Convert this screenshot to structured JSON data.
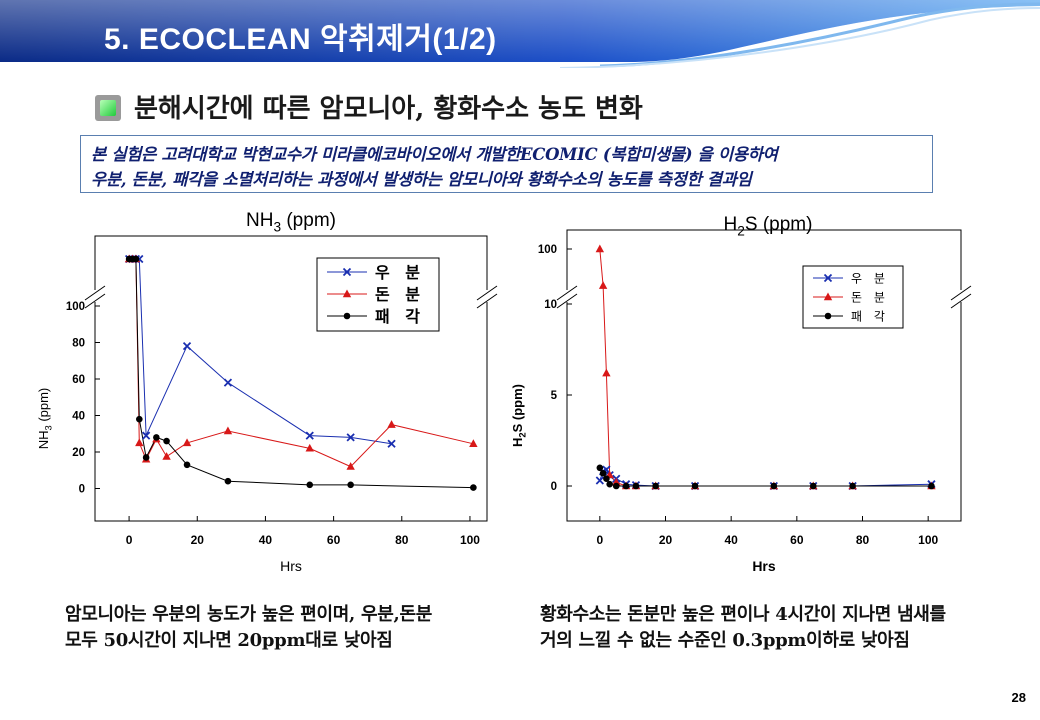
{
  "header": {
    "title": "5. ECOCLEAN 악취제거(1/2)"
  },
  "subtitle": "분해시간에 따른 암모니아, 황화수소 농도 변화",
  "note": {
    "lines": [
      "본 실험은 고려대학교 박현교수가 미라클에코바이오에서 개발한ECOMIC (복합미생물) 을 이용하여",
      "우분, 돈분, 패각을 소멸처리하는 과정에서 발생하는 암모니아와 황화수소의 농도를 측정한 결과임"
    ]
  },
  "chart_data": [
    {
      "type": "line",
      "title": "NH3 (ppm)",
      "title_main": "NH",
      "title_sub": "3",
      "title_rest": " (ppm)",
      "xlabel": "Hrs",
      "ylabel": "NH3 (ppm)",
      "ylabel_main": "NH",
      "ylabel_sub": "3",
      "ylabel_rest": " (ppm)",
      "xlim": [
        -10,
        105
      ],
      "ylim": [
        -20,
        110
      ],
      "axis_break": true,
      "xticks": [
        "0",
        "20",
        "40",
        "60",
        "80",
        "100"
      ],
      "yticks": [
        "0",
        "20",
        "40",
        "60",
        "80",
        "100"
      ],
      "legend_position": "top-right",
      "series": [
        {
          "name": "우 분",
          "marker": "x",
          "color": "#1a2fb0",
          "x": [
            0,
            1,
            2,
            3,
            5,
            17,
            29,
            53,
            65,
            77
          ],
          "y": [
            150,
            150,
            150,
            150,
            29,
            78,
            58,
            29,
            28,
            24.5
          ]
        },
        {
          "name": "돈 분",
          "marker": "triangle",
          "color": "#d81818",
          "x": [
            0,
            1,
            2,
            3,
            5,
            8,
            11,
            17,
            29,
            53,
            65,
            77,
            101
          ],
          "y": [
            150,
            150,
            150,
            25,
            16,
            27,
            17.5,
            25,
            31.5,
            22,
            12,
            35,
            24.5
          ]
        },
        {
          "name": "패 각",
          "marker": "circle",
          "color": "#000000",
          "x": [
            0,
            1,
            2,
            3,
            5,
            8,
            11,
            17,
            29,
            53,
            65,
            101
          ],
          "y": [
            150,
            150,
            150,
            38,
            17,
            28,
            26,
            13,
            4,
            2,
            2,
            0.5
          ]
        }
      ]
    },
    {
      "type": "line",
      "title": "H2S (ppm)",
      "title_main": "H",
      "title_sub": "2",
      "title_rest": "S (ppm)",
      "xlabel": "Hrs",
      "ylabel": "H2S (ppm)",
      "ylabel_main": "H",
      "ylabel_sub": "2",
      "ylabel_rest": "S (ppm)",
      "xlim": [
        -10,
        110
      ],
      "ylim": [
        -2,
        13
      ],
      "axis_break": true,
      "xticks": [
        "0",
        "20",
        "40",
        "60",
        "80",
        "100"
      ],
      "yticks": [
        "0",
        "5",
        "10",
        "100"
      ],
      "legend_position": "top-right",
      "series": [
        {
          "name": "우 분",
          "marker": "x",
          "color": "#1a2fb0",
          "x": [
            0,
            1,
            2,
            3,
            5,
            8,
            11,
            17,
            29,
            53,
            65,
            77,
            101
          ],
          "y": [
            0.3,
            0.8,
            0.9,
            0.6,
            0.4,
            0.1,
            0.05,
            0,
            0,
            0,
            0,
            0,
            0.1
          ]
        },
        {
          "name": "돈 분",
          "marker": "triangle",
          "color": "#d81818",
          "x": [
            0,
            1,
            2,
            3,
            5,
            8,
            11,
            17,
            29,
            53,
            65,
            77,
            101
          ],
          "y": [
            100,
            14,
            6.2,
            0.6,
            0.2,
            0,
            0,
            0,
            0,
            0,
            0,
            0,
            0
          ]
        },
        {
          "name": "패 각",
          "marker": "circle",
          "color": "#000000",
          "x": [
            0,
            1,
            2,
            3,
            5,
            8,
            11,
            17,
            29,
            53,
            65,
            77,
            101
          ],
          "y": [
            1,
            0.7,
            0.4,
            0.1,
            0,
            0,
            0,
            0,
            0,
            0,
            0,
            0,
            0
          ]
        }
      ]
    }
  ],
  "captions": {
    "left": [
      "암모니아는 우분의 농도가 높은 편이며, 우분,돈분",
      "모두 50시간이 지나면 20ppm대로 낮아짐"
    ],
    "right": [
      "황화수소는 돈분만 높은 편이나 4시간이 지나면 냄새를",
      "거의 느낄 수 없는 수준인 0.3ppm이하로 낮아짐"
    ]
  },
  "page": {
    "number": "28"
  }
}
